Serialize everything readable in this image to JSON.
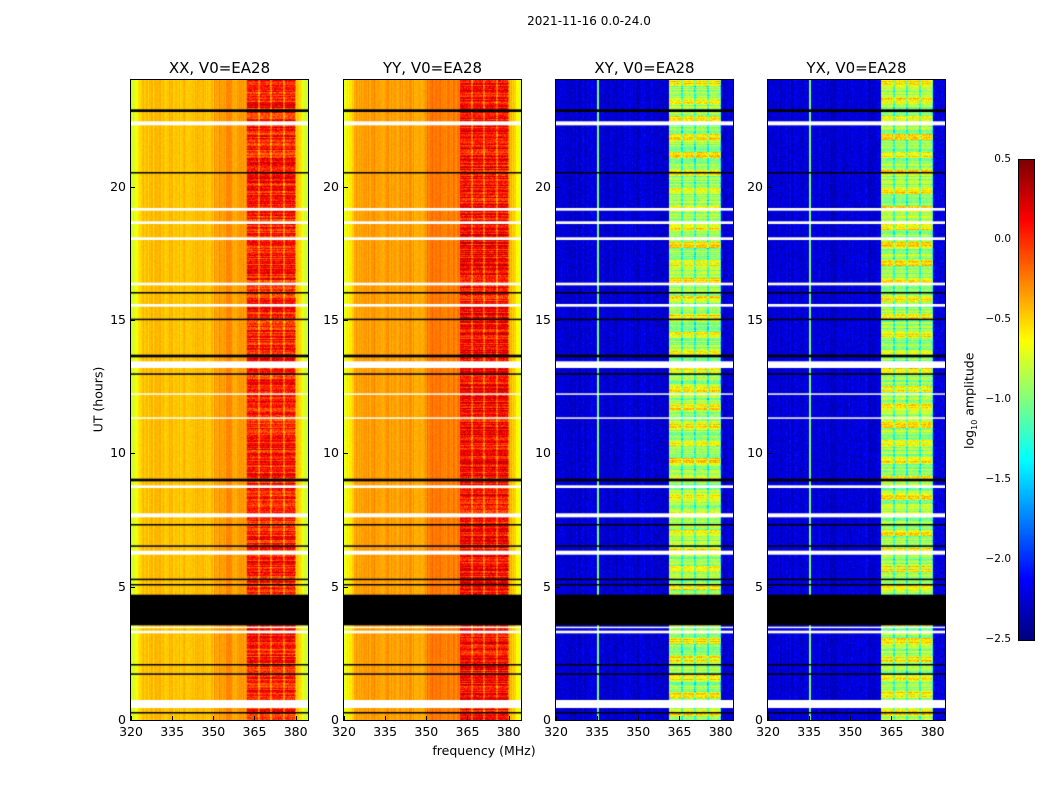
{
  "chart_data": {
    "type": "heatmap",
    "title": "2021-11-16 0.0-24.0",
    "xlabel": "frequency (MHz)",
    "ylabel": "UT (hours)",
    "xlim": [
      320,
      384.5
    ],
    "ylim": [
      0,
      24
    ],
    "xticks": [
      "320",
      "335",
      "350",
      "365",
      "380"
    ],
    "xtick_values": [
      320,
      335,
      350,
      365,
      380
    ],
    "yticks": [
      "0",
      "5",
      "10",
      "15",
      "20"
    ],
    "ytick_values": [
      0,
      5,
      10,
      15,
      20
    ],
    "colormap": "jet",
    "colorbar": {
      "label_prefix": "log",
      "label_sub": "10",
      "label_suffix": " amplitude",
      "range": [
        -2.5,
        0.5
      ],
      "ticks": [
        "0.5",
        "0.0",
        "−0.5",
        "−1.0",
        "−1.5",
        "−2.0",
        "−2.5"
      ],
      "tick_values": [
        0.5,
        0.0,
        -0.5,
        -1.0,
        -1.5,
        -2.0,
        -2.5
      ]
    },
    "flagged_black_hours": [
      [
        3.55,
        4.7
      ],
      [
        5.05,
        5.1
      ],
      [
        5.25,
        5.3
      ],
      [
        2.05,
        2.1
      ],
      [
        1.7,
        1.75
      ],
      [
        0.25,
        0.3
      ],
      [
        8.95,
        9.05
      ],
      [
        12.95,
        13.0
      ],
      [
        13.6,
        13.7
      ],
      [
        15.0,
        15.05
      ],
      [
        16.0,
        16.05
      ],
      [
        20.5,
        20.55
      ],
      [
        22.8,
        22.9
      ],
      [
        7.3,
        7.35
      ],
      [
        6.5,
        6.55
      ]
    ],
    "flagged_white_hours": [
      [
        0.45,
        0.75
      ],
      [
        3.25,
        3.35
      ],
      [
        3.45,
        3.5
      ],
      [
        6.2,
        6.35
      ],
      [
        7.6,
        7.75
      ],
      [
        8.7,
        8.8
      ],
      [
        13.2,
        13.45
      ],
      [
        15.5,
        15.6
      ],
      [
        16.3,
        16.4
      ],
      [
        18.0,
        18.1
      ],
      [
        18.6,
        18.7
      ],
      [
        19.1,
        19.2
      ],
      [
        22.3,
        22.45
      ],
      [
        11.3,
        11.35
      ],
      [
        12.2,
        12.25
      ]
    ],
    "panels": [
      {
        "title": "XX, V0=EA28",
        "kind": "parallel",
        "base_level": -0.45,
        "band_mhz": [
          362,
          380
        ],
        "band_level": 0.05
      },
      {
        "title": "YY, V0=EA28",
        "kind": "parallel",
        "base_level": -0.35,
        "band_mhz": [
          362,
          380
        ],
        "band_level": 0.1
      },
      {
        "title": "XY, V0=EA28",
        "kind": "cross",
        "base_level": -2.25,
        "band_mhz": [
          361,
          380
        ],
        "band_level": -0.9
      },
      {
        "title": "YX, V0=EA28",
        "kind": "cross",
        "base_level": -2.25,
        "band_mhz": [
          361,
          380
        ],
        "band_level": -0.9
      }
    ]
  }
}
